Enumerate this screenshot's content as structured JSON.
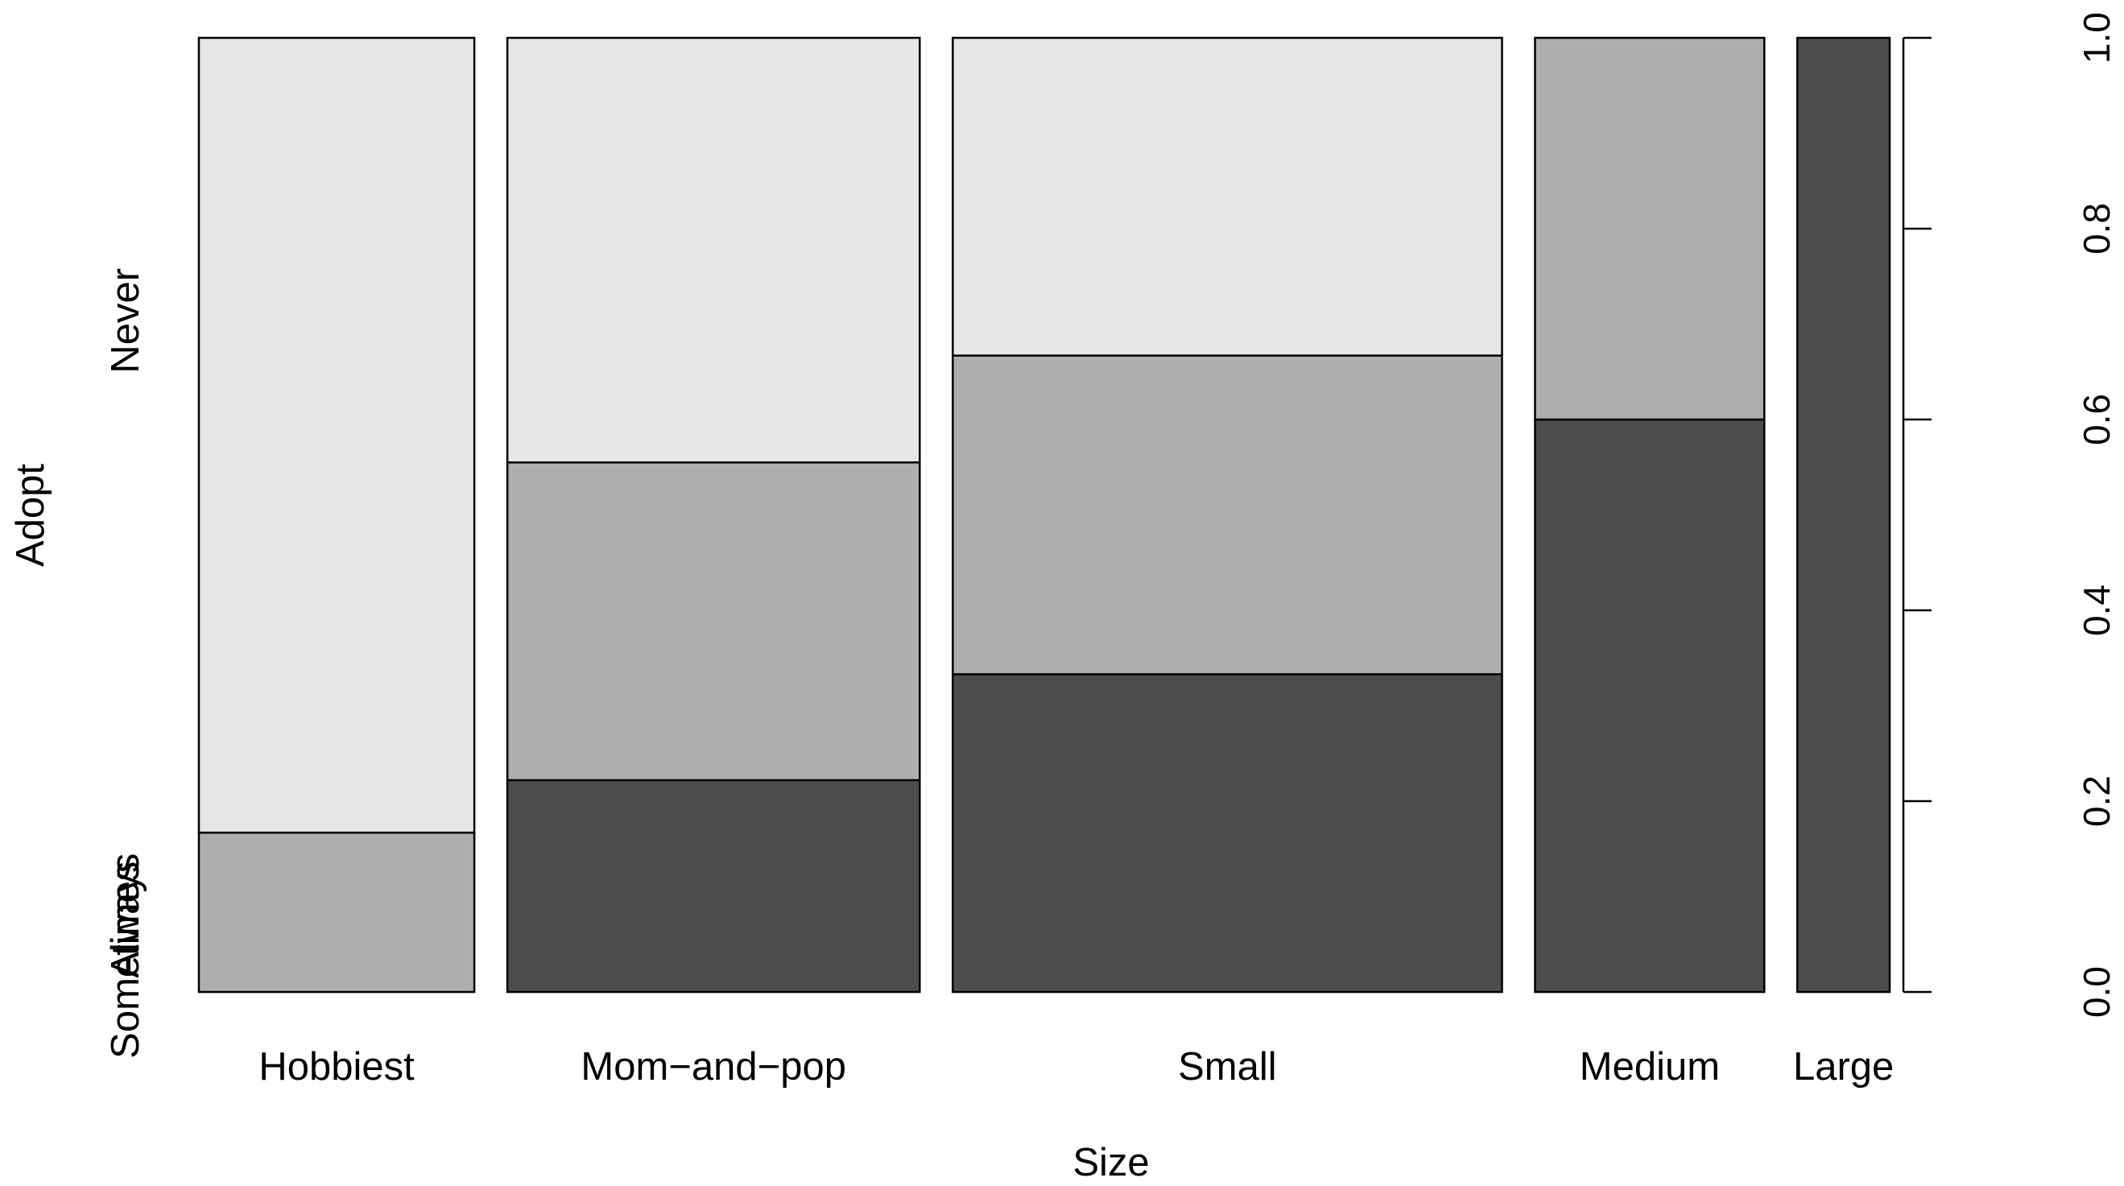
{
  "chart_data": {
    "type": "spineplot",
    "xlabel": "Size",
    "ylabel": "Adopt",
    "ylim": [
      0,
      1
    ],
    "y_ticks": [
      0.0,
      0.2,
      0.4,
      0.6,
      0.8,
      1.0
    ],
    "y_tick_labels": [
      "0.0",
      "0.2",
      "0.4",
      "0.6",
      "0.8",
      "1.0"
    ],
    "levels": [
      "Always",
      "Sometimes",
      "Never"
    ],
    "level_colors": [
      "#4d4d4d",
      "#aeaeae",
      "#e6e6e6"
    ],
    "categories": [
      "Hobbiest",
      "Mom−and−pop",
      "Small",
      "Medium",
      "Large"
    ],
    "category_widths": [
      0.167,
      0.25,
      0.333,
      0.139,
      0.056
    ],
    "proportions": [
      [
        0.0,
        0.167,
        0.833
      ],
      [
        0.222,
        0.333,
        0.445
      ],
      [
        0.333,
        0.334,
        0.333
      ],
      [
        0.6,
        0.4,
        0.0
      ],
      [
        1.0,
        0.0,
        0.0
      ]
    ],
    "grid": false,
    "legend": "none"
  }
}
